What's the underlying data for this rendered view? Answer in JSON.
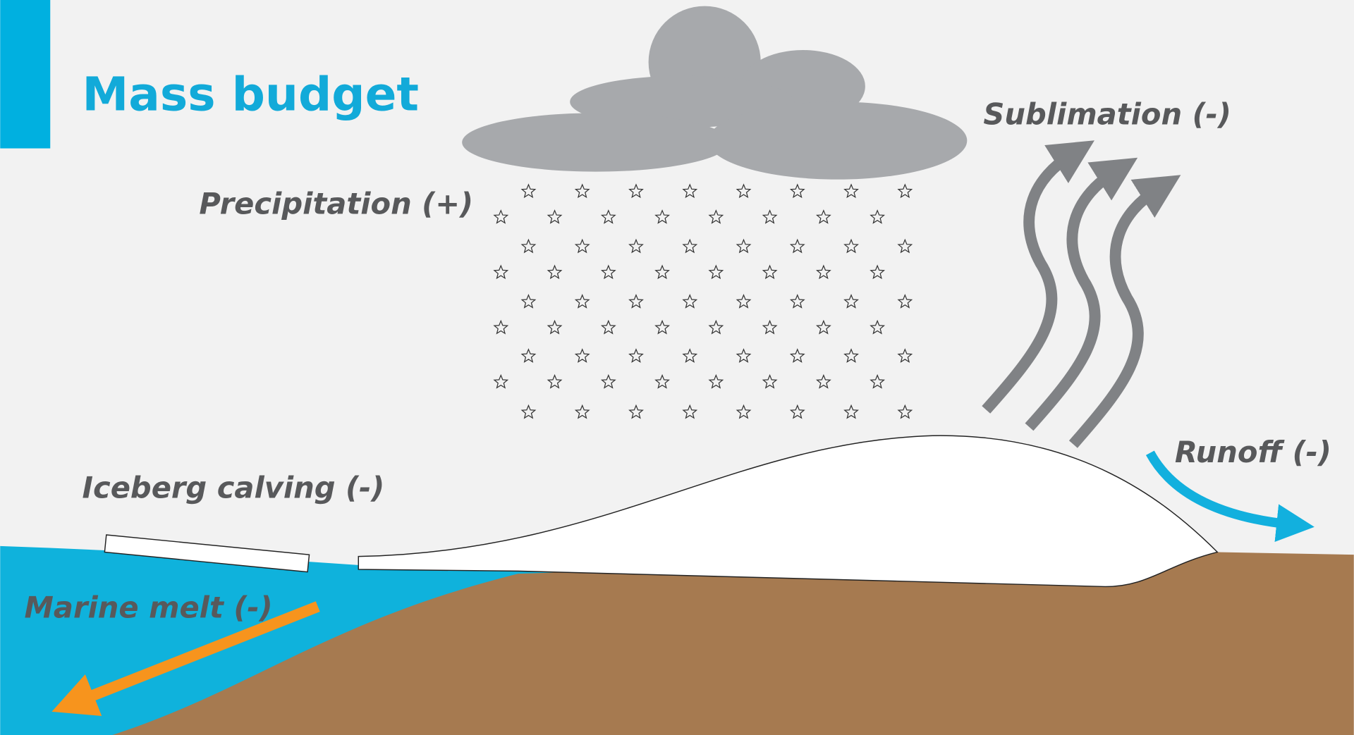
{
  "title": "Mass budget",
  "labels": {
    "precipitation": "Precipitation (+)",
    "sublimation": "Sublimation (-)",
    "runoff": "Runoff (-)",
    "iceberg_calving": "Iceberg calving (-)",
    "marine_melt": "Marine melt (-)"
  }
}
